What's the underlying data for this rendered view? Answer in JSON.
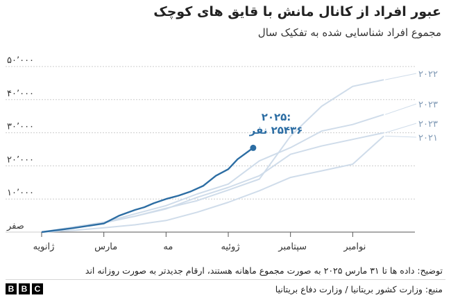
{
  "header": {
    "title": "عبور افراد از کانال مانش با قایق های کوچک",
    "subtitle": "مجموع افراد شناسایی شده به تفکیک سال"
  },
  "footer": {
    "note": "توضیح: داده ها تا ۳۱ مارس ۲۰۲۵ به صورت مجموع ماهانه هستند، ارقام جدیدتر به صورت روزانه اند",
    "source": "منبع: وزارت کشور بریتانیا / وزارت دفاع بریتانیا",
    "logo_letters": [
      "B",
      "B",
      "C"
    ]
  },
  "chart_data": {
    "type": "line",
    "x_type": "month",
    "xlim": [
      0,
      12
    ],
    "ylim": [
      0,
      50000
    ],
    "yticks": [
      {
        "value": 0,
        "label": "صفر"
      },
      {
        "value": 10000,
        "label": "۱۰٬۰۰۰"
      },
      {
        "value": 20000,
        "label": "۲۰٬۰۰۰"
      },
      {
        "value": 30000,
        "label": "۳۰٬۰۰۰"
      },
      {
        "value": 40000,
        "label": "۴۰٬۰۰۰"
      },
      {
        "value": 50000,
        "label": "۵۰٬۰۰۰"
      }
    ],
    "xticks": [
      {
        "value": 0,
        "label": "ژانویه"
      },
      {
        "value": 2,
        "label": "مارس"
      },
      {
        "value": 4,
        "label": "مه"
      },
      {
        "value": 6,
        "label": "ژوئیه"
      },
      {
        "value": 8,
        "label": "سپتامبر"
      },
      {
        "value": 10,
        "label": "نوامبر"
      }
    ],
    "grid": "horizontal",
    "colors": {
      "highlight": "#2c6da3",
      "background": "#cfdcea",
      "grid": "#cccccc",
      "label": "#7e98b4"
    },
    "series": [
      {
        "name": "۲۰۲۲",
        "color": "#cfdcea",
        "points": [
          [
            0,
            0
          ],
          [
            1,
            1500
          ],
          [
            2,
            2800
          ],
          [
            3,
            4800
          ],
          [
            4,
            7200
          ],
          [
            5,
            9500
          ],
          [
            6,
            12700
          ],
          [
            7,
            16000
          ],
          [
            8,
            29000
          ],
          [
            9,
            38000
          ],
          [
            10,
            44000
          ],
          [
            11,
            46000
          ]
        ]
      },
      {
        "name": "۲۰۲۳",
        "color": "#cfdcea",
        "points": [
          [
            0,
            0
          ],
          [
            1,
            1200
          ],
          [
            2,
            3000
          ],
          [
            3,
            5500
          ],
          [
            4,
            8000
          ],
          [
            5,
            11500
          ],
          [
            6,
            14500
          ],
          [
            7,
            21500
          ],
          [
            8,
            25500
          ],
          [
            9,
            30500
          ],
          [
            10,
            32500
          ],
          [
            11,
            35500
          ]
        ]
      },
      {
        "name": "۲۰۲۳",
        "color": "#cfdcea",
        "points": [
          [
            0,
            0
          ],
          [
            1,
            1500
          ],
          [
            2,
            3000
          ],
          [
            3,
            4800
          ],
          [
            4,
            7000
          ],
          [
            5,
            10500
          ],
          [
            6,
            13500
          ],
          [
            7,
            17000
          ],
          [
            8,
            23500
          ],
          [
            9,
            26000
          ],
          [
            10,
            28000
          ],
          [
            11,
            30000
          ]
        ]
      },
      {
        "name": "۲۰۲۱",
        "color": "#cfdcea",
        "points": [
          [
            0,
            0
          ],
          [
            1,
            500
          ],
          [
            2,
            1300
          ],
          [
            3,
            2200
          ],
          [
            4,
            3500
          ],
          [
            5,
            6000
          ],
          [
            6,
            9000
          ],
          [
            7,
            12500
          ],
          [
            8,
            16500
          ],
          [
            9,
            18500
          ],
          [
            10,
            20500
          ],
          [
            11,
            29000
          ]
        ]
      },
      {
        "name": "۲۰۲۵",
        "color": "#2c6da3",
        "highlight": true,
        "points": [
          [
            0,
            0
          ],
          [
            1,
            1200
          ],
          [
            2,
            2600
          ],
          [
            2.5,
            5000
          ],
          [
            3,
            6700
          ],
          [
            3.3,
            7500
          ],
          [
            3.6,
            8700
          ],
          [
            4,
            10000
          ],
          [
            4.4,
            11000
          ],
          [
            4.8,
            12300
          ],
          [
            5.2,
            14000
          ],
          [
            5.6,
            17000
          ],
          [
            6,
            19000
          ],
          [
            6.3,
            22000
          ],
          [
            6.8,
            25436
          ]
        ]
      }
    ],
    "endpoint": {
      "value": 25436,
      "year_label": "۲۰۲۵:",
      "value_label": "۲۵۴۳۶ نفر"
    }
  }
}
